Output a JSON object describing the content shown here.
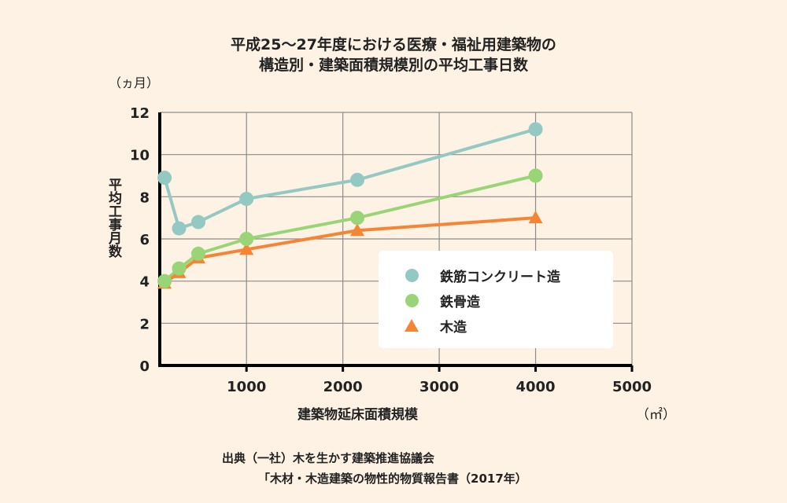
{
  "title_line1": "平成25～27年度における医療・福祉用建築物の",
  "title_line2": "構造別・建築面積規模別の平均工事日数",
  "y_unit": "（ヵ月）",
  "x_unit": "（㎡）",
  "source_line1": "出典（一社）木を生かす建築推進協議会",
  "source_line2": "「木材・木造建築の物性的物質報告書（2017年）",
  "chart_data": {
    "type": "line",
    "title": "平成25～27年度における医療・福祉用建築物の構造別・建築面積規模別の平均工事日数",
    "xlabel": "建築物延床面積規模",
    "ylabel": "平均工事月数",
    "xlim": [
      100,
      5000
    ],
    "ylim": [
      0,
      12
    ],
    "x_ticks": [
      1000,
      2000,
      3000,
      4000,
      5000
    ],
    "y_ticks": [
      0,
      2,
      4,
      6,
      8,
      10,
      12
    ],
    "grid": true,
    "legend_position": "right",
    "series": [
      {
        "name": "鉄筋コンクリート造",
        "color": "#94c9c3",
        "marker": "circle",
        "x": [
          150,
          300,
          500,
          1000,
          2150,
          4000
        ],
        "y": [
          8.9,
          6.5,
          6.8,
          7.9,
          8.8,
          11.2
        ]
      },
      {
        "name": "鉄骨造",
        "color": "#99d577",
        "marker": "circle",
        "x": [
          150,
          300,
          500,
          1000,
          2150,
          4000
        ],
        "y": [
          4.0,
          4.6,
          5.3,
          6.0,
          7.0,
          9.0
        ]
      },
      {
        "name": "木造",
        "color": "#f58534",
        "marker": "triangle",
        "x": [
          150,
          300,
          500,
          1000,
          2150,
          4000
        ],
        "y": [
          3.9,
          4.4,
          5.1,
          5.5,
          6.4,
          7.0
        ]
      }
    ]
  }
}
